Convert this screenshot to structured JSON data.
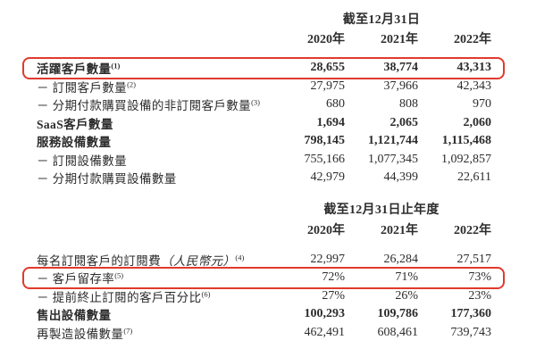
{
  "colors": {
    "highlight_red": "#e03a2e",
    "text": "#2c2c2c"
  },
  "table1": {
    "period_header": "截至12月31日",
    "years": [
      "2020年",
      "2021年",
      "2022年"
    ],
    "rows": [
      {
        "label": "活躍客戶數量",
        "sup": "(1)",
        "highlight": true,
        "bold": true,
        "values": [
          "28,655",
          "38,774",
          "43,313"
        ]
      },
      {
        "label": "－ 訂閱客戶數量",
        "sup": "(2)",
        "highlight": false,
        "bold": false,
        "values": [
          "27,975",
          "37,966",
          "42,343"
        ]
      },
      {
        "label": "－ 分期付款購買設備的非訂閱客戶數量",
        "sup": "(3)",
        "highlight": false,
        "bold": false,
        "values": [
          "680",
          "808",
          "970"
        ]
      },
      {
        "label": "SaaS客戶數量",
        "sup": "",
        "highlight": false,
        "bold": true,
        "values": [
          "1,694",
          "2,065",
          "2,060"
        ]
      },
      {
        "label": "服務設備數量",
        "sup": "",
        "highlight": false,
        "bold": true,
        "values": [
          "798,145",
          "1,121,744",
          "1,115,468"
        ]
      },
      {
        "label": "－ 訂閱設備數量",
        "sup": "",
        "highlight": false,
        "bold": false,
        "values": [
          "755,166",
          "1,077,345",
          "1,092,857"
        ]
      },
      {
        "label": "－ 分期付款購買設備數量",
        "sup": "",
        "highlight": false,
        "bold": false,
        "values": [
          "42,979",
          "44,399",
          "22,611"
        ]
      }
    ]
  },
  "table2": {
    "period_header": "截至12月31日止年度",
    "years": [
      "2020年",
      "2021年",
      "2022年"
    ],
    "rows": [
      {
        "label": "每名訂閱客戶的訂閱費",
        "label_italic": "（人民幣元）",
        "sup": "(4)",
        "highlight": false,
        "bold": false,
        "values": [
          "22,997",
          "26,284",
          "27,517"
        ]
      },
      {
        "label": "－ 客戶留存率",
        "sup": "(5)",
        "highlight": true,
        "bold": false,
        "values": [
          "72%",
          "71%",
          "73%"
        ]
      },
      {
        "label": "－ 提前終止訂閱的客戶百分比",
        "sup": "(6)",
        "highlight": false,
        "bold": false,
        "values": [
          "27%",
          "26%",
          "23%"
        ]
      },
      {
        "label": "售出設備數量",
        "sup": "",
        "highlight": false,
        "bold": true,
        "values": [
          "100,293",
          "109,786",
          "177,360"
        ]
      },
      {
        "label": "再製造設備數量",
        "sup": "(7)",
        "highlight": false,
        "bold": false,
        "values": [
          "462,491",
          "608,461",
          "739,743"
        ]
      }
    ]
  }
}
